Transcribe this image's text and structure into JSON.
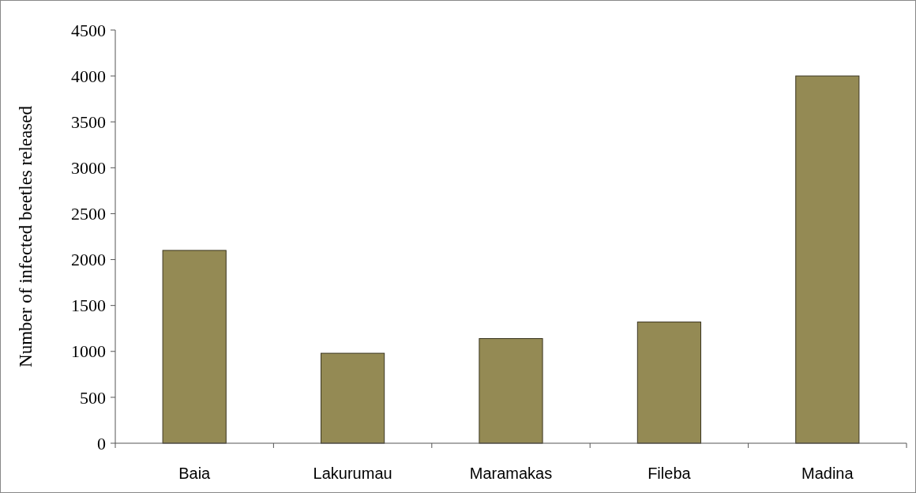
{
  "chart_data": {
    "type": "bar",
    "ylabel": "Number of infected beetles released",
    "categories": [
      "Baia",
      "Lakurumau",
      "Maramakas",
      "Fileba",
      "Madina"
    ],
    "values": [
      2100,
      980,
      1140,
      1320,
      4000
    ],
    "color": "#948a54",
    "ylim": [
      0,
      4500
    ],
    "yticks": [
      0,
      500,
      1000,
      1500,
      2000,
      2500,
      3000,
      3500,
      4000,
      4500
    ],
    "grid": false
  }
}
